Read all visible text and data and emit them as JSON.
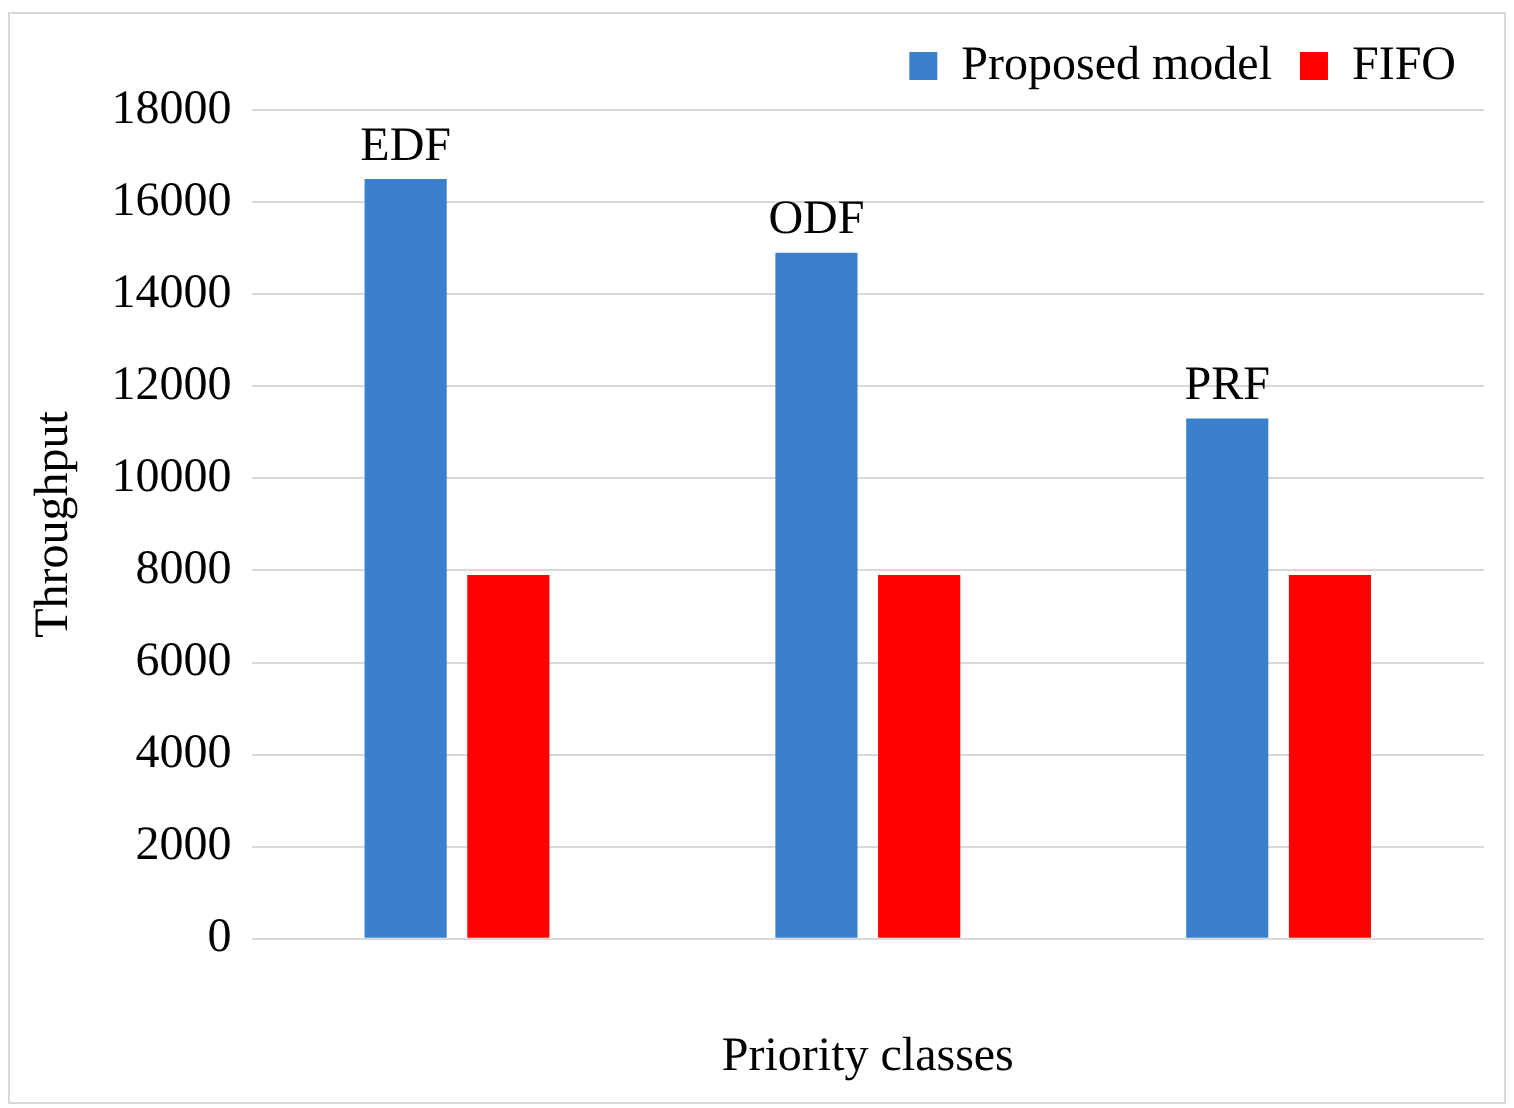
{
  "chart_data": {
    "type": "bar",
    "xlabel": "Priority classes",
    "ylabel": "Throughput",
    "categories": [
      null,
      null,
      null
    ],
    "series": [
      {
        "name": "Proposed model",
        "color": "#3a80cc",
        "values": [
          16500,
          14900,
          11300
        ]
      },
      {
        "name": "FIFO",
        "color": "#ff0000",
        "values": [
          7900,
          7900,
          7900
        ]
      }
    ],
    "annotations": [
      {
        "text": "EDF",
        "y": 16500
      },
      {
        "text": "ODF",
        "y": 14900
      },
      {
        "text": "PRF",
        "y": 11300
      }
    ],
    "ylim": [
      0,
      18000
    ],
    "yticks": [
      0,
      2000,
      4000,
      6000,
      8000,
      10000,
      12000,
      14000,
      16000,
      18000
    ],
    "grid": "y",
    "legend": "top right"
  }
}
